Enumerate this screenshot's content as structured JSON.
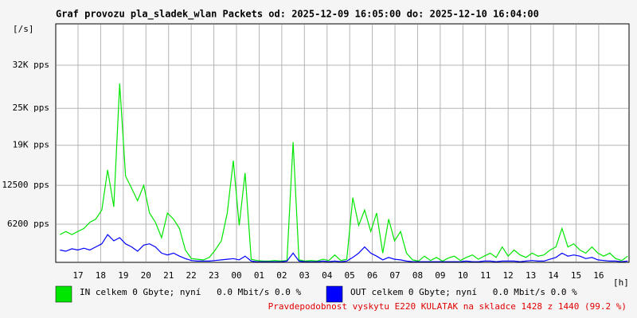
{
  "chart_data": {
    "type": "line",
    "title": "Graf provozu pla_sladek_wlan Packets od: 2025-12-09 16:05:00 do: 2025-12-10 16:04:00",
    "y_label": "[/s]",
    "x_label": "[h]",
    "footer": "Pravdepodobnost vyskytu E220 KULATAK na skladce 1428 z 1440 (99.2 %)",
    "xlim": [
      16.015,
      41.34
    ],
    "ylim": [
      0,
      38700
    ],
    "grid": true,
    "xticks": [
      17,
      18,
      19,
      20,
      21,
      22,
      23,
      {
        "value": 24,
        "label": "00"
      },
      {
        "value": 25,
        "label": "01"
      },
      {
        "value": 26,
        "label": "02"
      },
      {
        "value": 27,
        "label": "03"
      },
      {
        "value": 28,
        "label": "04"
      },
      {
        "value": 29,
        "label": "05"
      },
      {
        "value": 30,
        "label": "06"
      },
      {
        "value": 31,
        "label": "07"
      },
      {
        "value": 32,
        "label": "08"
      },
      {
        "value": 33,
        "label": "09"
      },
      {
        "value": 34,
        "label": "10"
      },
      {
        "value": 35,
        "label": "11"
      },
      {
        "value": 36,
        "label": "12"
      },
      {
        "value": 37,
        "label": "13"
      },
      {
        "value": 38,
        "label": "14"
      },
      {
        "value": 39,
        "label": "15"
      },
      {
        "value": 40,
        "label": "16"
      }
    ],
    "yticks": [
      {
        "value": 6200,
        "label": "6200 pps"
      },
      {
        "value": 12500,
        "label": "12500 pps"
      },
      {
        "value": 19000,
        "label": "19K pps"
      },
      {
        "value": 25000,
        "label": "25K pps"
      },
      {
        "value": 32000,
        "label": "32K pps"
      }
    ],
    "x": [
      16.2,
      16.46,
      16.73,
      16.99,
      17.26,
      17.52,
      17.78,
      18.05,
      18.31,
      18.58,
      18.84,
      19.1,
      19.37,
      19.63,
      19.9,
      20.16,
      20.42,
      20.69,
      20.95,
      21.22,
      21.48,
      21.74,
      22.01,
      22.27,
      22.54,
      22.8,
      23.06,
      23.33,
      23.59,
      23.86,
      24.12,
      24.38,
      24.65,
      24.91,
      25.18,
      25.44,
      25.7,
      25.97,
      26.23,
      26.5,
      26.76,
      27.02,
      27.29,
      27.55,
      27.82,
      28.08,
      28.34,
      28.61,
      28.87,
      29.14,
      29.4,
      29.66,
      29.93,
      30.19,
      30.46,
      30.72,
      30.98,
      31.25,
      31.51,
      31.78,
      32.04,
      32.3,
      32.57,
      32.83,
      33.1,
      33.36,
      33.62,
      33.89,
      34.15,
      34.42,
      34.68,
      34.94,
      35.21,
      35.47,
      35.74,
      36.0,
      36.26,
      36.53,
      36.79,
      37.06,
      37.32,
      37.58,
      37.85,
      38.11,
      38.38,
      38.64,
      38.9,
      39.17,
      39.43,
      39.7,
      39.96,
      40.22,
      40.49,
      40.75,
      41.02,
      41.28
    ],
    "series": [
      {
        "name": "IN celkem 0 Gbyte; nyní   0.0 Mbit/s 0.0 %",
        "color": "#00e600",
        "values": [
          4500,
          5000,
          4500,
          5000,
          5500,
          6500,
          7000,
          8500,
          15000,
          9000,
          29000,
          14000,
          12000,
          10000,
          12500,
          8000,
          6500,
          4000,
          8000,
          7000,
          5500,
          2000,
          600,
          500,
          400,
          800,
          2000,
          3500,
          8000,
          16500,
          6000,
          14500,
          500,
          300,
          200,
          200,
          300,
          200,
          300,
          19500,
          400,
          200,
          300,
          200,
          500,
          300,
          1200,
          300,
          500,
          10500,
          6000,
          8500,
          5000,
          8000,
          1500,
          7000,
          3500,
          5000,
          1500,
          400,
          200,
          1000,
          300,
          800,
          200,
          700,
          1000,
          300,
          800,
          1200,
          500,
          1000,
          1500,
          800,
          2500,
          1000,
          2000,
          1200,
          800,
          1500,
          1000,
          1200,
          2000,
          2500,
          5500,
          2500,
          3000,
          2000,
          1500,
          2500,
          1500,
          1000,
          1500,
          600,
          300,
          1000
        ]
      },
      {
        "name": "OUT celkem 0 Gbyte; nyní   0.0 Mbit/s 0.0 %",
        "color": "#0000ff",
        "values": [
          2000,
          1800,
          2200,
          2000,
          2300,
          2000,
          2500,
          3000,
          4500,
          3500,
          4000,
          3000,
          2500,
          1800,
          2800,
          3000,
          2500,
          1500,
          1200,
          1500,
          1000,
          600,
          300,
          200,
          200,
          200,
          300,
          400,
          500,
          600,
          400,
          1000,
          200,
          100,
          100,
          100,
          100,
          100,
          200,
          1500,
          200,
          100,
          100,
          100,
          200,
          100,
          200,
          100,
          200,
          800,
          1500,
          2500,
          1500,
          1000,
          400,
          800,
          500,
          400,
          200,
          100,
          100,
          100,
          100,
          100,
          100,
          100,
          100,
          100,
          200,
          100,
          100,
          200,
          200,
          100,
          200,
          200,
          200,
          100,
          200,
          300,
          200,
          200,
          500,
          800,
          1500,
          1000,
          1200,
          1000,
          600,
          800,
          400,
          300,
          200,
          200,
          100,
          200
        ]
      }
    ]
  }
}
